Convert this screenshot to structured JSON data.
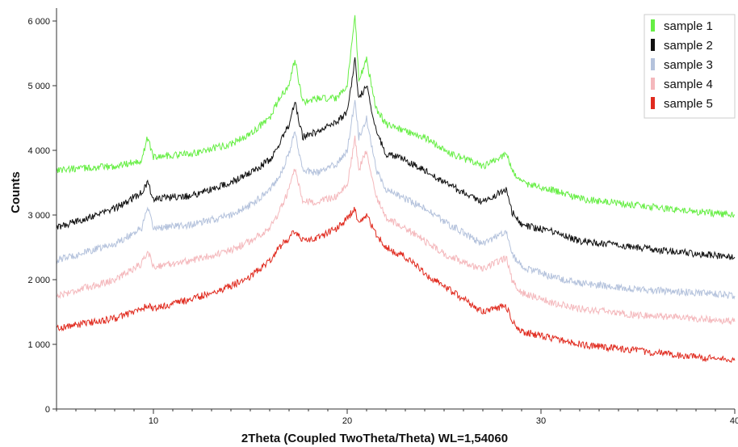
{
  "chart_data": {
    "type": "line",
    "xlabel": "2Theta (Coupled TwoTheta/Theta) WL=1,54060",
    "ylabel": "Counts",
    "xlim": [
      5,
      40
    ],
    "ylim": [
      0,
      6200
    ],
    "xticks": [
      10,
      20,
      30,
      40
    ],
    "xtick_labels": [
      "10",
      "20",
      "30",
      "40"
    ],
    "yticks": [
      0,
      1000,
      2000,
      3000,
      4000,
      5000,
      6000
    ],
    "ytick_labels": [
      "0",
      "1 000",
      "2 000",
      "3 000",
      "4 000",
      "5 000",
      "6 000"
    ],
    "grid": false,
    "legend_position": "top-right",
    "series": [
      {
        "name": "sample 1",
        "color": "#66ee44",
        "x": [
          5,
          8,
          9.4,
          9.7,
          10,
          12,
          14,
          15,
          16,
          16.5,
          17,
          17.3,
          17.7,
          18.5,
          19.5,
          20,
          20.4,
          20.6,
          21,
          21.5,
          22,
          23,
          24,
          25,
          27,
          28.2,
          28.5,
          29,
          30.5,
          32,
          35,
          38,
          40
        ],
        "values": [
          3700,
          3750,
          3850,
          4200,
          3900,
          3950,
          4100,
          4250,
          4500,
          4800,
          5000,
          5400,
          4750,
          4800,
          4800,
          5000,
          6100,
          5100,
          5400,
          4650,
          4400,
          4300,
          4200,
          4000,
          3750,
          3950,
          3700,
          3500,
          3400,
          3250,
          3150,
          3050,
          3000
        ]
      },
      {
        "name": "sample 2",
        "color": "#111111",
        "x": [
          5,
          8,
          9.4,
          9.7,
          10,
          12,
          14,
          15,
          16,
          16.5,
          17,
          17.3,
          17.7,
          18.5,
          19.5,
          20,
          20.4,
          20.6,
          21,
          21.5,
          22,
          23,
          24,
          25,
          27,
          28.2,
          28.5,
          29,
          30.5,
          32,
          35,
          38,
          40
        ],
        "values": [
          2800,
          3100,
          3350,
          3500,
          3250,
          3300,
          3500,
          3650,
          3850,
          4100,
          4400,
          4750,
          4200,
          4300,
          4450,
          4600,
          5400,
          4800,
          5000,
          4300,
          3950,
          3850,
          3700,
          3500,
          3200,
          3400,
          3050,
          2850,
          2750,
          2600,
          2500,
          2400,
          2350
        ]
      },
      {
        "name": "sample 3",
        "color": "#b4c2dc",
        "x": [
          5,
          8,
          9.4,
          9.7,
          10,
          12,
          14,
          15,
          16,
          16.5,
          17,
          17.3,
          17.7,
          18.5,
          19.5,
          20,
          20.4,
          20.6,
          21,
          21.5,
          22,
          23,
          24,
          25,
          27,
          28.2,
          28.5,
          29,
          30.5,
          32,
          35,
          38,
          40
        ],
        "values": [
          2300,
          2550,
          2800,
          3100,
          2800,
          2850,
          3000,
          3150,
          3400,
          3600,
          3950,
          4300,
          3700,
          3650,
          3800,
          4000,
          4800,
          4200,
          4500,
          3700,
          3400,
          3250,
          3100,
          2900,
          2550,
          2750,
          2400,
          2200,
          2050,
          1950,
          1850,
          1800,
          1750
        ]
      },
      {
        "name": "sample 4",
        "color": "#f4b8bc",
        "x": [
          5,
          8,
          9.4,
          9.7,
          10,
          12,
          14,
          15,
          16,
          16.5,
          17,
          17.3,
          17.7,
          18.5,
          19.5,
          20,
          20.4,
          20.6,
          21,
          21.5,
          22,
          23,
          24,
          25,
          27,
          28.2,
          28.5,
          29,
          30.5,
          32,
          35,
          38,
          40
        ],
        "values": [
          1750,
          2000,
          2250,
          2450,
          2200,
          2300,
          2450,
          2600,
          2800,
          3050,
          3400,
          3700,
          3200,
          3200,
          3300,
          3450,
          4200,
          3700,
          4000,
          3300,
          2950,
          2800,
          2600,
          2400,
          2150,
          2350,
          2000,
          1800,
          1650,
          1550,
          1450,
          1400,
          1350
        ]
      },
      {
        "name": "sample 5",
        "color": "#e02a1e",
        "x": [
          5,
          8,
          9.4,
          9.7,
          10,
          12,
          14,
          15,
          16,
          16.5,
          17,
          17.3,
          17.7,
          18.5,
          19.5,
          20,
          20.4,
          20.6,
          21,
          21.5,
          22,
          23,
          24,
          25,
          27,
          28.2,
          28.5,
          29,
          30.5,
          32,
          35,
          38,
          40
        ],
        "values": [
          1250,
          1400,
          1550,
          1600,
          1550,
          1700,
          1900,
          2050,
          2300,
          2500,
          2650,
          2750,
          2600,
          2650,
          2800,
          2950,
          3100,
          2850,
          3000,
          2700,
          2500,
          2350,
          2100,
          1900,
          1500,
          1600,
          1350,
          1200,
          1100,
          1000,
          900,
          800,
          750
        ]
      }
    ]
  }
}
